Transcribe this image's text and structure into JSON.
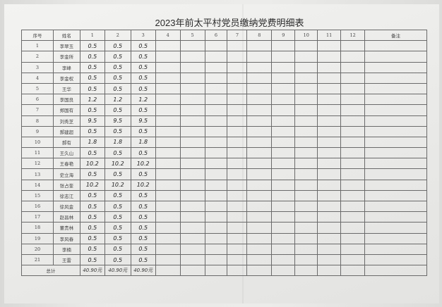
{
  "title": "2023年前太平村党员缴纳党费明细表",
  "headers": [
    "序号",
    "姓名",
    "1",
    "2",
    "3",
    "4",
    "5",
    "6",
    "7",
    "8",
    "9",
    "10",
    "11",
    "12",
    "备注"
  ],
  "rows": [
    {
      "no": "1",
      "name": "李翠玉",
      "m": [
        "0.5",
        "0.5",
        "0.5"
      ]
    },
    {
      "no": "2",
      "name": "李金所",
      "m": [
        "0.5",
        "0.5",
        "0.5"
      ]
    },
    {
      "no": "3",
      "name": "李峰",
      "m": [
        "0.5",
        "0.5",
        "0.5"
      ]
    },
    {
      "no": "4",
      "name": "李金权",
      "m": [
        "0.5",
        "0.5",
        "0.5"
      ]
    },
    {
      "no": "5",
      "name": "王华",
      "m": [
        "0.5",
        "0.5",
        "0.5"
      ]
    },
    {
      "no": "6",
      "name": "李国良",
      "m": [
        "1.2",
        "1.2",
        "1.2"
      ]
    },
    {
      "no": "7",
      "name": "郑国有",
      "m": [
        "0.5",
        "0.5",
        "0.5"
      ]
    },
    {
      "no": "8",
      "name": "刘秀芝",
      "m": [
        "9.5",
        "9.5",
        "9.5"
      ]
    },
    {
      "no": "9",
      "name": "郝建超",
      "m": [
        "0.5",
        "0.5",
        "0.5"
      ]
    },
    {
      "no": "10",
      "name": "郝有",
      "m": [
        "1.8",
        "1.8",
        "1.8"
      ]
    },
    {
      "no": "11",
      "name": "王久山",
      "m": [
        "0.5",
        "0.5",
        "0.5"
      ]
    },
    {
      "no": "12",
      "name": "王春艳",
      "m": [
        "10.2",
        "10.2",
        "10.2"
      ]
    },
    {
      "no": "13",
      "name": "史立海",
      "m": [
        "0.5",
        "0.5",
        "0.5"
      ]
    },
    {
      "no": "14",
      "name": "张占奎",
      "m": [
        "10.2",
        "10.2",
        "10.2"
      ]
    },
    {
      "no": "15",
      "name": "徐志江",
      "m": [
        "0.5",
        "0.5",
        "0.5"
      ]
    },
    {
      "no": "16",
      "name": "徐风金",
      "m": [
        "0.5",
        "0.5",
        "0.5"
      ]
    },
    {
      "no": "17",
      "name": "赵昌林",
      "m": [
        "0.5",
        "0.5",
        "0.5"
      ]
    },
    {
      "no": "18",
      "name": "董贵林",
      "m": [
        "0.5",
        "0.5",
        "0.5"
      ]
    },
    {
      "no": "19",
      "name": "李风春",
      "m": [
        "0.5",
        "0.5",
        "0.5"
      ]
    },
    {
      "no": "20",
      "name": "李楠",
      "m": [
        "0.5",
        "0.5",
        "0.5"
      ]
    },
    {
      "no": "21",
      "name": "王雷",
      "m": [
        "0.5",
        "0.5",
        "0.5"
      ]
    }
  ],
  "total": {
    "label": "总计",
    "m": [
      "40.90元",
      "40.90元",
      "40.90元"
    ]
  }
}
